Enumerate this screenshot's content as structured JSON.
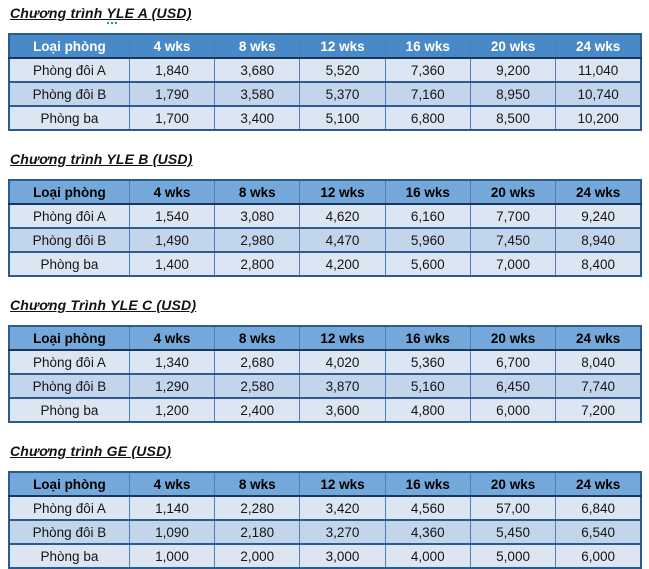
{
  "document": {
    "description": "Four program pricing tables in USD",
    "currency": "USD"
  },
  "colors": {
    "header_dark_bg": "#4a89c8",
    "header_dark_text": "#ffffff",
    "header_light_bg": "#74a8da",
    "header_light_text": "#000000",
    "row_light_bg": "#dce6f2",
    "row_medium_bg": "#c2d5eb",
    "border_dark": "#2e5b8f",
    "border_inner": "#4e7fb7",
    "spellcheck_green": "#35a047"
  },
  "tables": [
    {
      "title": "Chương trình YLE A (USD)",
      "header_style": "dark",
      "grammar_mark": true,
      "columns": [
        "Loại phòng",
        "4 wks",
        "8 wks",
        "12 wks",
        "16 wks",
        "20 wks",
        "24 wks"
      ],
      "rows": [
        {
          "label": "Phòng đôi A",
          "values": [
            "1,840",
            "3,680",
            "5,520",
            "7,360",
            "9,200",
            "11,040"
          ]
        },
        {
          "label": "Phòng đôi B",
          "values": [
            "1,790",
            "3,580",
            "5,370",
            "7,160",
            "8,950",
            "10,740"
          ]
        },
        {
          "label": "Phòng ba",
          "values": [
            "1,700",
            "3,400",
            "5,100",
            "6,800",
            "8,500",
            "10,200"
          ]
        }
      ]
    },
    {
      "title": "Chương trình YLE B (USD)",
      "header_style": "light",
      "grammar_mark": false,
      "columns": [
        "Loại phòng",
        "4 wks",
        "8 wks",
        "12 wks",
        "16 wks",
        "20 wks",
        "24 wks"
      ],
      "rows": [
        {
          "label": "Phòng đôi A",
          "values": [
            "1,540",
            "3,080",
            "4,620",
            "6,160",
            "7,700",
            "9,240"
          ]
        },
        {
          "label": "Phòng đôi B",
          "values": [
            "1,490",
            "2,980",
            "4,470",
            "5,960",
            "7,450",
            "8,940"
          ]
        },
        {
          "label": "Phòng ba",
          "values": [
            "1,400",
            "2,800",
            "4,200",
            "5,600",
            "7,000",
            "8,400"
          ]
        }
      ]
    },
    {
      "title": "Chương Trình YLE C (USD)",
      "header_style": "light",
      "grammar_mark": false,
      "columns": [
        "Loại phòng",
        "4 wks",
        "8 wks",
        "12 wks",
        "16 wks",
        "20 wks",
        "24 wks"
      ],
      "rows": [
        {
          "label": "Phòng đôi A",
          "values": [
            "1,340",
            "2,680",
            "4,020",
            "5,360",
            "6,700",
            "8,040"
          ]
        },
        {
          "label": "Phòng đôi B",
          "values": [
            "1,290",
            "2,580",
            "3,870",
            "5,160",
            "6,450",
            "7,740"
          ]
        },
        {
          "label": "Phòng ba",
          "values": [
            "1,200",
            "2,400",
            "3,600",
            "4,800",
            "6,000",
            "7,200"
          ]
        }
      ]
    },
    {
      "title": "Chương trình GE (USD)",
      "header_style": "light",
      "grammar_mark": false,
      "columns": [
        "Loại phòng",
        "4 wks",
        "8 wks",
        "12 wks",
        "16 wks",
        "20 wks",
        "24 wks"
      ],
      "rows": [
        {
          "label": "Phòng đôi A",
          "values": [
            "1,140",
            "2,280",
            "3,420",
            "4,560",
            "57,00",
            "6,840"
          ]
        },
        {
          "label": "Phòng đôi B",
          "values": [
            "1,090",
            "2,180",
            "3,270",
            "4,360",
            "5,450",
            "6,540"
          ]
        },
        {
          "label": "Phòng ba",
          "values": [
            "1,000",
            "2,000",
            "3,000",
            "4,000",
            "5,000",
            "6,000"
          ]
        }
      ]
    }
  ]
}
